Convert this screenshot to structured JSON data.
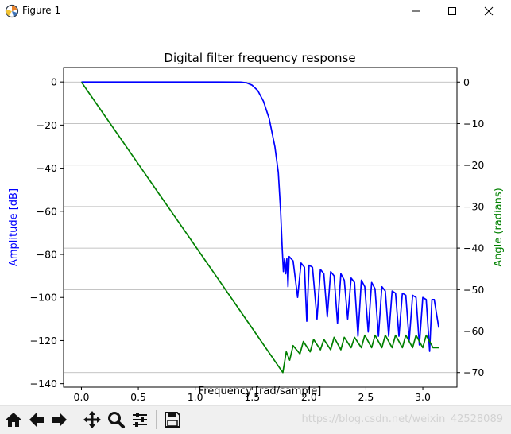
{
  "window": {
    "title": "Figure 1",
    "icons": [
      "matplotlib-icon",
      "minimize-icon",
      "maximize-icon",
      "close-icon"
    ]
  },
  "toolbar": {
    "buttons": [
      "home-icon",
      "back-icon",
      "forward-icon",
      "pan-icon",
      "zoom-icon",
      "configure-subplots-icon",
      "save-icon"
    ]
  },
  "watermark": "https://blog.csdn.net/weixin_42528089",
  "colors": {
    "amplitude": "#0000ff",
    "angle": "#008000",
    "grid": "#b0b0b0"
  },
  "chart_data": {
    "type": "line",
    "title": "Digital filter frequency response",
    "xlabel": "Frequency [rad/sample]",
    "ylabel_left": "Amplitude [dB]",
    "ylabel_right": "Angle (radians)",
    "xlim": [
      -0.157,
      3.3
    ],
    "ylim_left": [
      -141.6,
      6.7
    ],
    "ylim_right": [
      -73.5,
      3.5
    ],
    "xticks": [
      0.0,
      0.5,
      1.0,
      1.5,
      2.0,
      2.5,
      3.0
    ],
    "xtick_labels": [
      "0.0",
      "0.5",
      "1.0",
      "1.5",
      "2.0",
      "2.5",
      "3.0"
    ],
    "yticks_left": [
      0,
      -20,
      -40,
      -60,
      -80,
      -100,
      -120,
      -140
    ],
    "ytick_labels_left": [
      "0",
      "−20",
      "−40",
      "−60",
      "−80",
      "−100",
      "−120",
      "−140"
    ],
    "yticks_right": [
      0,
      -10,
      -20,
      -30,
      -40,
      -50,
      -60,
      -70
    ],
    "ytick_labels_right": [
      "0",
      "−10",
      "−20",
      "−30",
      "−40",
      "−50",
      "−60",
      "−70"
    ],
    "grid": "horizontal lines at right-axis ticks",
    "series": [
      {
        "axis": "left",
        "color": "#0000ff",
        "points": [
          [
            0.0,
            0
          ],
          [
            0.3,
            0
          ],
          [
            0.6,
            0
          ],
          [
            0.9,
            0
          ],
          [
            1.2,
            0
          ],
          [
            1.4,
            -0.1
          ],
          [
            1.45,
            -0.4
          ],
          [
            1.5,
            -1.5
          ],
          [
            1.55,
            -4
          ],
          [
            1.6,
            -9
          ],
          [
            1.65,
            -17
          ],
          [
            1.7,
            -30
          ],
          [
            1.73,
            -42
          ],
          [
            1.75,
            -60
          ],
          [
            1.765,
            -78
          ],
          [
            1.775,
            -88
          ],
          [
            1.785,
            -82
          ],
          [
            1.795,
            -89
          ],
          [
            1.805,
            -82
          ],
          [
            1.815,
            -95
          ],
          [
            1.825,
            -81
          ],
          [
            1.86,
            -83
          ],
          [
            1.9,
            -100
          ],
          [
            1.93,
            -84
          ],
          [
            1.96,
            -86
          ],
          [
            1.98,
            -111
          ],
          [
            2.0,
            -85
          ],
          [
            2.03,
            -86
          ],
          [
            2.07,
            -110
          ],
          [
            2.1,
            -87
          ],
          [
            2.13,
            -89
          ],
          [
            2.16,
            -109
          ],
          [
            2.19,
            -88
          ],
          [
            2.22,
            -90
          ],
          [
            2.25,
            -112
          ],
          [
            2.28,
            -89
          ],
          [
            2.31,
            -92
          ],
          [
            2.34,
            -110
          ],
          [
            2.37,
            -91
          ],
          [
            2.4,
            -93
          ],
          [
            2.43,
            -118
          ],
          [
            2.46,
            -92
          ],
          [
            2.49,
            -95
          ],
          [
            2.52,
            -116
          ],
          [
            2.55,
            -93
          ],
          [
            2.58,
            -96
          ],
          [
            2.61,
            -118
          ],
          [
            2.64,
            -95
          ],
          [
            2.67,
            -97
          ],
          [
            2.7,
            -118
          ],
          [
            2.73,
            -97
          ],
          [
            2.76,
            -98
          ],
          [
            2.79,
            -118
          ],
          [
            2.82,
            -98
          ],
          [
            2.85,
            -99
          ],
          [
            2.88,
            -120
          ],
          [
            2.91,
            -99
          ],
          [
            2.94,
            -100
          ],
          [
            2.97,
            -122
          ],
          [
            3.0,
            -100
          ],
          [
            3.03,
            -101
          ],
          [
            3.06,
            -125
          ],
          [
            3.08,
            -101
          ],
          [
            3.1,
            -101
          ],
          [
            3.14,
            -114
          ]
        ]
      },
      {
        "axis": "right",
        "color": "#008000",
        "points": [
          [
            0.0,
            0
          ],
          [
            0.4,
            -15.8
          ],
          [
            0.8,
            -31.6
          ],
          [
            1.2,
            -47.4
          ],
          [
            1.5,
            -59.3
          ],
          [
            1.77,
            -70
          ],
          [
            1.8,
            -65
          ],
          [
            1.83,
            -67
          ],
          [
            1.86,
            -63.5
          ],
          [
            1.92,
            -65.5
          ],
          [
            1.95,
            -62.5
          ],
          [
            2.01,
            -65
          ],
          [
            2.04,
            -62
          ],
          [
            2.1,
            -64.5
          ],
          [
            2.13,
            -62
          ],
          [
            2.19,
            -64.5
          ],
          [
            2.22,
            -61.5
          ],
          [
            2.28,
            -64.5
          ],
          [
            2.31,
            -61.5
          ],
          [
            2.37,
            -64
          ],
          [
            2.4,
            -61.5
          ],
          [
            2.46,
            -64
          ],
          [
            2.49,
            -61
          ],
          [
            2.55,
            -64
          ],
          [
            2.58,
            -61
          ],
          [
            2.64,
            -64
          ],
          [
            2.67,
            -61
          ],
          [
            2.73,
            -64
          ],
          [
            2.76,
            -61
          ],
          [
            2.82,
            -64
          ],
          [
            2.85,
            -61
          ],
          [
            2.91,
            -64
          ],
          [
            2.94,
            -61
          ],
          [
            3.0,
            -64
          ],
          [
            3.03,
            -61
          ],
          [
            3.09,
            -64
          ],
          [
            3.14,
            -64
          ]
        ]
      }
    ]
  }
}
